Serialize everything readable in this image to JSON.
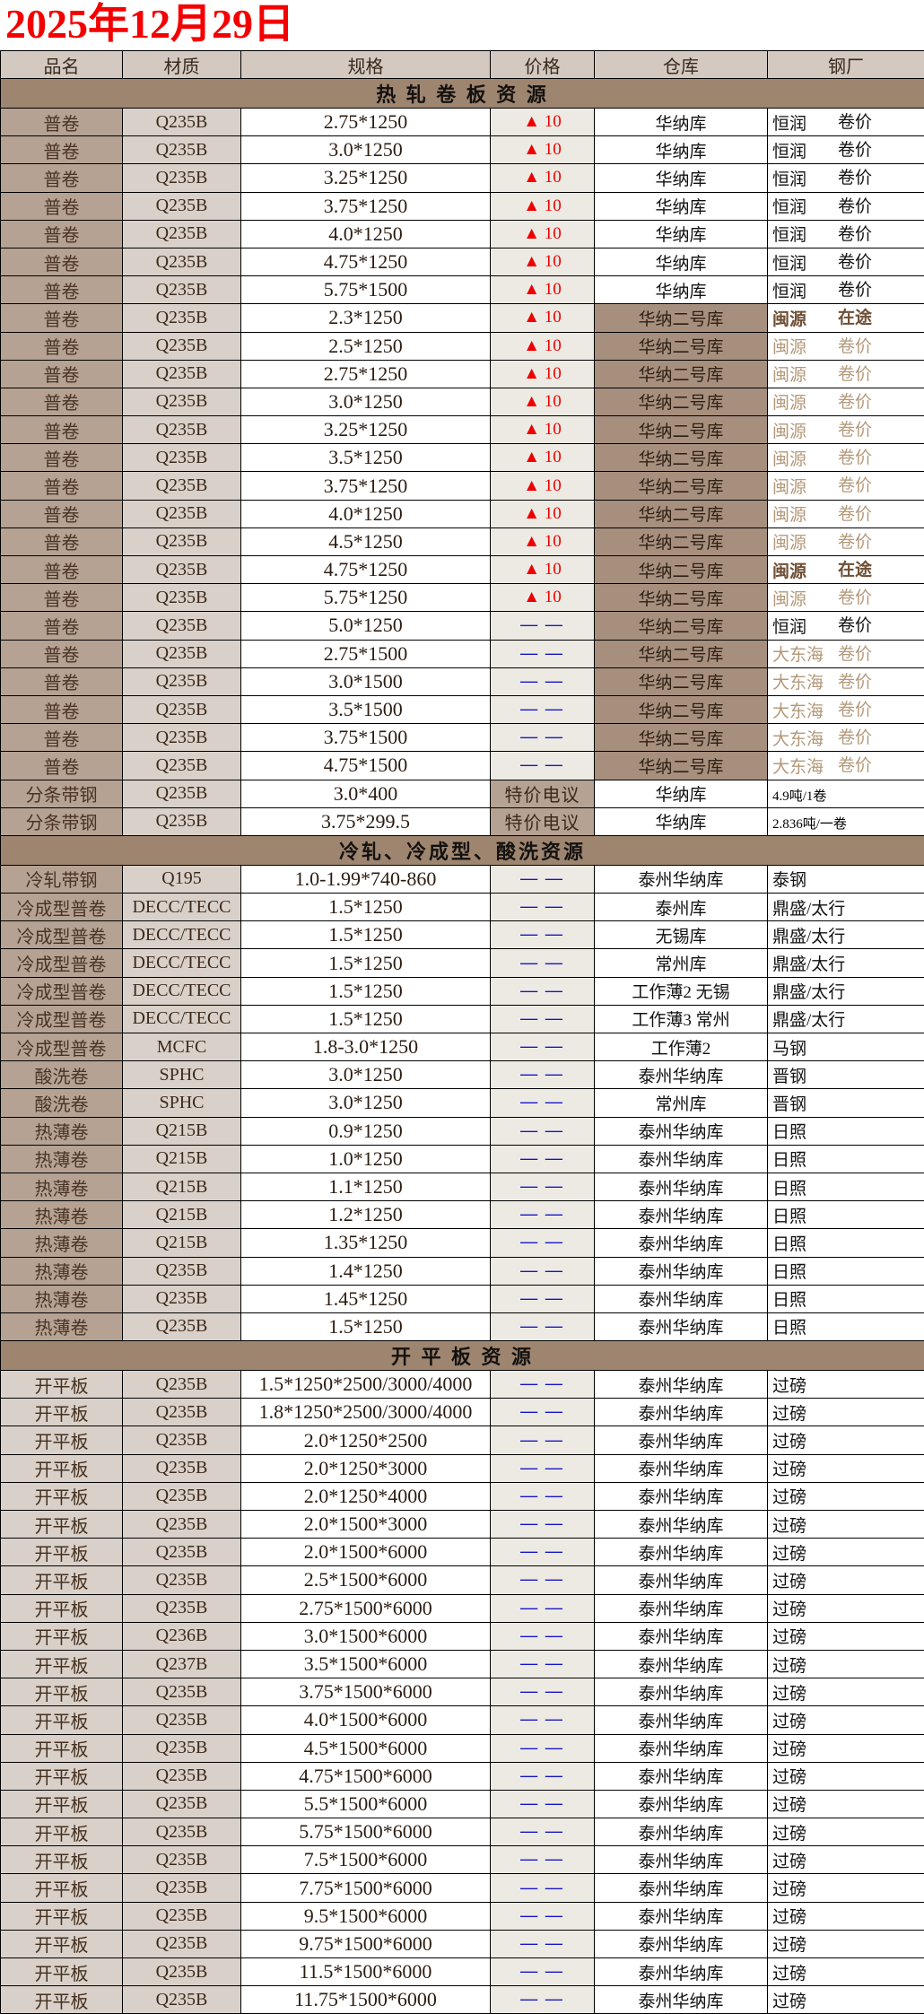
{
  "title": "2025年12月29日",
  "columns": [
    "品名",
    "材质",
    "规格",
    "价格",
    "仓库",
    "钢厂"
  ],
  "colors": {
    "title": "#f40000",
    "up_arrow": "#ee0000",
    "dash_blue": "#1515c8",
    "section_bg": "#9e8570",
    "name_bg": "#b5a293",
    "mat_bg": "#d9d1c9",
    "price_bg": "#edeae3",
    "wh_dark_bg": "#a78f7e",
    "tan_text": "#b39879",
    "dark_note_text": "#6f4f35"
  },
  "sections": [
    {
      "label": "热 轧 卷 板 资 源",
      "name_shade": "dark",
      "rows": [
        [
          "普卷",
          "Q235B",
          "2.75*1250",
          "▲ 10",
          "华纳库",
          "恒润",
          "卷价",
          "plain"
        ],
        [
          "普卷",
          "Q235B",
          "3.0*1250",
          "▲ 10",
          "华纳库",
          "恒润",
          "卷价",
          "plain"
        ],
        [
          "普卷",
          "Q235B",
          "3.25*1250",
          "▲ 10",
          "华纳库",
          "恒润",
          "卷价",
          "plain"
        ],
        [
          "普卷",
          "Q235B",
          "3.75*1250",
          "▲ 10",
          "华纳库",
          "恒润",
          "卷价",
          "plain"
        ],
        [
          "普卷",
          "Q235B",
          "4.0*1250",
          "▲ 10",
          "华纳库",
          "恒润",
          "卷价",
          "plain"
        ],
        [
          "普卷",
          "Q235B",
          "4.75*1250",
          "▲ 10",
          "华纳库",
          "恒润",
          "卷价",
          "plain"
        ],
        [
          "普卷",
          "Q235B",
          "5.75*1500",
          "▲ 10",
          "华纳库",
          "恒润",
          "卷价",
          "plain"
        ],
        [
          "普卷",
          "Q235B",
          "2.3*1250",
          "▲ 10",
          "华纳二号库",
          "闽源",
          "在途",
          "dark"
        ],
        [
          "普卷",
          "Q235B",
          "2.5*1250",
          "▲ 10",
          "华纳二号库",
          "闽源",
          "卷价",
          "tan"
        ],
        [
          "普卷",
          "Q235B",
          "2.75*1250",
          "▲ 10",
          "华纳二号库",
          "闽源",
          "卷价",
          "tan"
        ],
        [
          "普卷",
          "Q235B",
          "3.0*1250",
          "▲ 10",
          "华纳二号库",
          "闽源",
          "卷价",
          "tan"
        ],
        [
          "普卷",
          "Q235B",
          "3.25*1250",
          "▲ 10",
          "华纳二号库",
          "闽源",
          "卷价",
          "tan"
        ],
        [
          "普卷",
          "Q235B",
          "3.5*1250",
          "▲ 10",
          "华纳二号库",
          "闽源",
          "卷价",
          "tan"
        ],
        [
          "普卷",
          "Q235B",
          "3.75*1250",
          "▲ 10",
          "华纳二号库",
          "闽源",
          "卷价",
          "tan"
        ],
        [
          "普卷",
          "Q235B",
          "4.0*1250",
          "▲ 10",
          "华纳二号库",
          "闽源",
          "卷价",
          "tan"
        ],
        [
          "普卷",
          "Q235B",
          "4.5*1250",
          "▲ 10",
          "华纳二号库",
          "闽源",
          "卷价",
          "tan"
        ],
        [
          "普卷",
          "Q235B",
          "4.75*1250",
          "▲ 10",
          "华纳二号库",
          "闽源",
          "在途",
          "dark"
        ],
        [
          "普卷",
          "Q235B",
          "5.75*1250",
          "▲ 10",
          "华纳二号库",
          "闽源",
          "卷价",
          "tan"
        ],
        [
          "普卷",
          "Q235B",
          "5.0*1250",
          "— —",
          "华纳二号库",
          "恒润",
          "卷价",
          "plain"
        ],
        [
          "普卷",
          "Q235B",
          "2.75*1500",
          "— —",
          "华纳二号库",
          "大东海",
          "卷价",
          "tan"
        ],
        [
          "普卷",
          "Q235B",
          "3.0*1500",
          "— —",
          "华纳二号库",
          "大东海",
          "卷价",
          "tan"
        ],
        [
          "普卷",
          "Q235B",
          "3.5*1500",
          "— —",
          "华纳二号库",
          "大东海",
          "卷价",
          "tan"
        ],
        [
          "普卷",
          "Q235B",
          "3.75*1500",
          "— —",
          "华纳二号库",
          "大东海",
          "卷价",
          "tan"
        ],
        [
          "普卷",
          "Q235B",
          "4.75*1500",
          "— —",
          "华纳二号库",
          "大东海",
          "卷价",
          "tan"
        ],
        [
          "分条带钢",
          "Q235B",
          "3.0*400",
          "特价电议",
          "华纳库",
          "4.9吨/1卷",
          "",
          "small"
        ],
        [
          "分条带钢",
          "Q235B",
          "3.75*299.5",
          "特价电议",
          "华纳库",
          "2.836吨/一卷",
          "",
          "small"
        ]
      ]
    },
    {
      "label": "冷轧、冷成型、酸洗资源",
      "name_shade": "dark",
      "rows": [
        [
          "冷轧带钢",
          "Q195",
          "1.0-1.99*740-860",
          "— —",
          "泰州华纳库",
          "泰钢",
          "",
          "left"
        ],
        [
          "冷成型普卷",
          "DECC/TECC",
          "1.5*1250",
          "— —",
          "泰州库",
          "鼎盛/太行",
          "",
          "left"
        ],
        [
          "冷成型普卷",
          "DECC/TECC",
          "1.5*1250",
          "— —",
          "无锡库",
          "鼎盛/太行",
          "",
          "left"
        ],
        [
          "冷成型普卷",
          "DECC/TECC",
          "1.5*1250",
          "— —",
          "常州库",
          "鼎盛/太行",
          "",
          "left"
        ],
        [
          "冷成型普卷",
          "DECC/TECC",
          "1.5*1250",
          "— —",
          "工作薄2 无锡",
          "鼎盛/太行",
          "",
          "left"
        ],
        [
          "冷成型普卷",
          "DECC/TECC",
          "1.5*1250",
          "— —",
          "工作薄3 常州",
          "鼎盛/太行",
          "",
          "left"
        ],
        [
          "冷成型普卷",
          "MCFC",
          "1.8-3.0*1250",
          "— —",
          "工作薄2",
          "马钢",
          "",
          "left"
        ],
        [
          "酸洗卷",
          "SPHC",
          "3.0*1250",
          "— —",
          "泰州华纳库",
          "晋钢",
          "",
          "left"
        ],
        [
          "酸洗卷",
          "SPHC",
          "3.0*1250",
          "— —",
          "常州库",
          "晋钢",
          "",
          "left"
        ],
        [
          "热薄卷",
          "Q215B",
          "0.9*1250",
          "— —",
          "泰州华纳库",
          "日照",
          "",
          "left"
        ],
        [
          "热薄卷",
          "Q215B",
          "1.0*1250",
          "— —",
          "泰州华纳库",
          "日照",
          "",
          "left"
        ],
        [
          "热薄卷",
          "Q215B",
          "1.1*1250",
          "— —",
          "泰州华纳库",
          "日照",
          "",
          "left"
        ],
        [
          "热薄卷",
          "Q215B",
          "1.2*1250",
          "— —",
          "泰州华纳库",
          "日照",
          "",
          "left"
        ],
        [
          "热薄卷",
          "Q215B",
          "1.35*1250",
          "— —",
          "泰州华纳库",
          "日照",
          "",
          "left"
        ],
        [
          "热薄卷",
          "Q235B",
          "1.4*1250",
          "— —",
          "泰州华纳库",
          "日照",
          "",
          "left"
        ],
        [
          "热薄卷",
          "Q235B",
          "1.45*1250",
          "— —",
          "泰州华纳库",
          "日照",
          "",
          "left"
        ],
        [
          "热薄卷",
          "Q235B",
          "1.5*1250",
          "— —",
          "泰州华纳库",
          "日照",
          "",
          "left"
        ]
      ]
    },
    {
      "label": "开 平 板 资 源",
      "name_shade": "light",
      "rows": [
        [
          "开平板",
          "Q235B",
          "1.5*1250*2500/3000/4000",
          "— —",
          "泰州华纳库",
          "过磅",
          "",
          "left"
        ],
        [
          "开平板",
          "Q235B",
          "1.8*1250*2500/3000/4000",
          "— —",
          "泰州华纳库",
          "过磅",
          "",
          "left"
        ],
        [
          "开平板",
          "Q235B",
          "2.0*1250*2500",
          "— —",
          "泰州华纳库",
          "过磅",
          "",
          "left"
        ],
        [
          "开平板",
          "Q235B",
          "2.0*1250*3000",
          "— —",
          "泰州华纳库",
          "过磅",
          "",
          "left"
        ],
        [
          "开平板",
          "Q235B",
          "2.0*1250*4000",
          "— —",
          "泰州华纳库",
          "过磅",
          "",
          "left"
        ],
        [
          "开平板",
          "Q235B",
          "2.0*1500*3000",
          "— —",
          "泰州华纳库",
          "过磅",
          "",
          "left"
        ],
        [
          "开平板",
          "Q235B",
          "2.0*1500*6000",
          "— —",
          "泰州华纳库",
          "过磅",
          "",
          "left"
        ],
        [
          "开平板",
          "Q235B",
          "2.5*1500*6000",
          "— —",
          "泰州华纳库",
          "过磅",
          "",
          "left"
        ],
        [
          "开平板",
          "Q235B",
          "2.75*1500*6000",
          "— —",
          "泰州华纳库",
          "过磅",
          "",
          "left"
        ],
        [
          "开平板",
          "Q236B",
          "3.0*1500*6000",
          "— —",
          "泰州华纳库",
          "过磅",
          "",
          "left"
        ],
        [
          "开平板",
          "Q237B",
          "3.5*1500*6000",
          "— —",
          "泰州华纳库",
          "过磅",
          "",
          "left"
        ],
        [
          "开平板",
          "Q235B",
          "3.75*1500*6000",
          "— —",
          "泰州华纳库",
          "过磅",
          "",
          "left"
        ],
        [
          "开平板",
          "Q235B",
          "4.0*1500*6000",
          "— —",
          "泰州华纳库",
          "过磅",
          "",
          "left"
        ],
        [
          "开平板",
          "Q235B",
          "4.5*1500*6000",
          "— —",
          "泰州华纳库",
          "过磅",
          "",
          "left"
        ],
        [
          "开平板",
          "Q235B",
          "4.75*1500*6000",
          "— —",
          "泰州华纳库",
          "过磅",
          "",
          "left"
        ],
        [
          "开平板",
          "Q235B",
          "5.5*1500*6000",
          "— —",
          "泰州华纳库",
          "过磅",
          "",
          "left"
        ],
        [
          "开平板",
          "Q235B",
          "5.75*1500*6000",
          "— —",
          "泰州华纳库",
          "过磅",
          "",
          "left"
        ],
        [
          "开平板",
          "Q235B",
          "7.5*1500*6000",
          "— —",
          "泰州华纳库",
          "过磅",
          "",
          "left"
        ],
        [
          "开平板",
          "Q235B",
          "7.75*1500*6000",
          "— —",
          "泰州华纳库",
          "过磅",
          "",
          "left"
        ],
        [
          "开平板",
          "Q235B",
          "9.5*1500*6000",
          "— —",
          "泰州华纳库",
          "过磅",
          "",
          "left"
        ],
        [
          "开平板",
          "Q235B",
          "9.75*1500*6000",
          "— —",
          "泰州华纳库",
          "过磅",
          "",
          "left"
        ],
        [
          "开平板",
          "Q235B",
          "11.5*1500*6000",
          "— —",
          "泰州华纳库",
          "过磅",
          "",
          "left"
        ],
        [
          "开平板",
          "Q235B",
          "11.75*1500*6000",
          "— —",
          "泰州华纳库",
          "过磅",
          "",
          "left"
        ]
      ]
    }
  ]
}
